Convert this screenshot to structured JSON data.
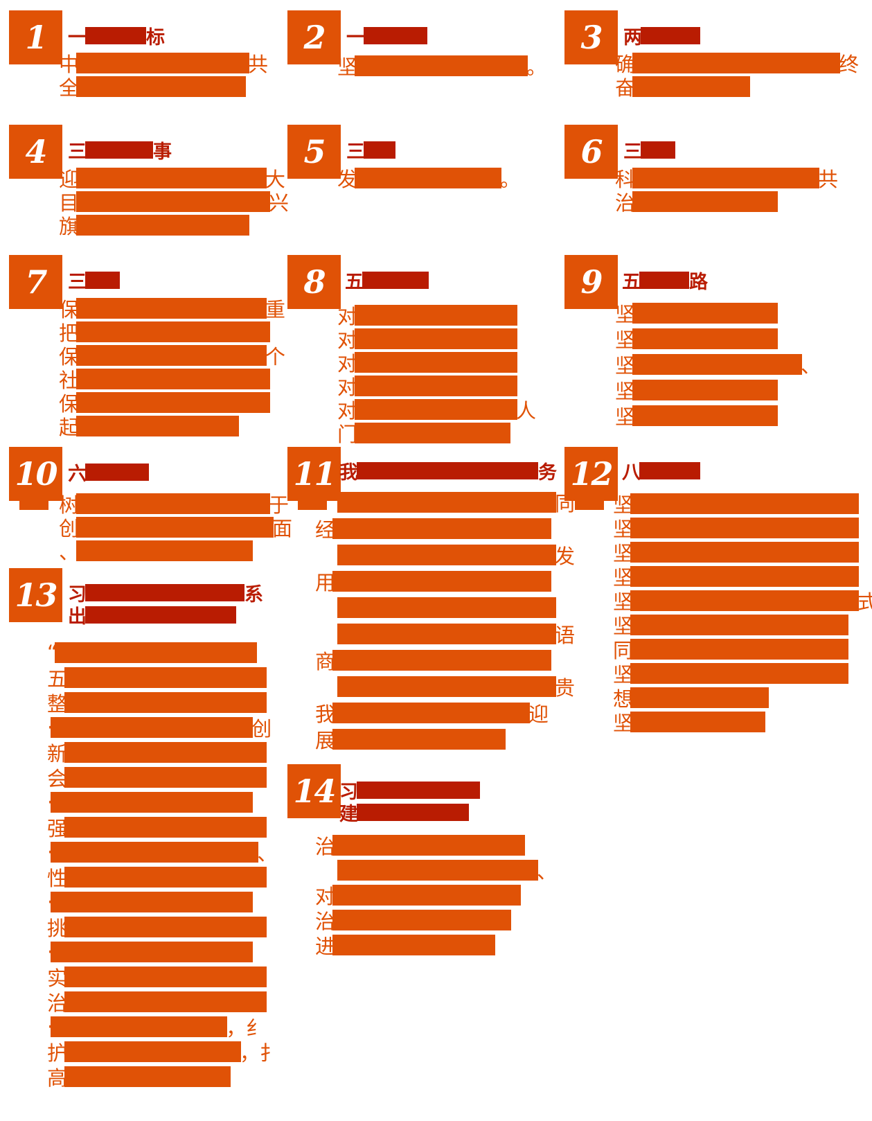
{
  "page": {
    "background": "#ffffff"
  },
  "colors": {
    "accent_orange": "#e05206",
    "heading_dark_red": "#b91c02",
    "badge_number_color": "#ffffff"
  },
  "items": [
    {
      "number": "1",
      "heading": [
        {
          "pre": "一",
          "post": "标"
        }
      ],
      "body": [
        {
          "pre": "中",
          "post": "共"
        },
        {
          "pre": "全",
          "post": ""
        }
      ]
    },
    {
      "number": "2",
      "heading": [
        {
          "pre": "一",
          "post": ""
        }
      ],
      "body": [
        {
          "pre": "坚",
          "post": "。"
        }
      ]
    },
    {
      "number": "3",
      "heading": [
        {
          "pre": "两",
          "post": ""
        }
      ],
      "body": [
        {
          "pre": "确",
          "post": "终"
        },
        {
          "pre": "奋",
          "post": ""
        }
      ]
    },
    {
      "number": "4",
      "heading": [
        {
          "pre": "三",
          "post": "事"
        }
      ],
      "body": [
        {
          "pre": "迎",
          "post": "大"
        },
        {
          "pre": "目",
          "post": "兴"
        },
        {
          "pre": "旗",
          "post": ""
        }
      ]
    },
    {
      "number": "5",
      "heading": [
        {
          "pre": "三",
          "post": ""
        }
      ],
      "body": [
        {
          "pre": "发",
          "post": "。"
        }
      ]
    },
    {
      "number": "6",
      "heading": [
        {
          "pre": "三",
          "post": ""
        }
      ],
      "body": [
        {
          "pre": "科",
          "post": "共"
        },
        {
          "pre": "治",
          "post": ""
        }
      ]
    },
    {
      "number": "7",
      "heading": [
        {
          "pre": "三",
          "post": ""
        }
      ],
      "body": [
        {
          "pre": "保",
          "post": "重"
        },
        {
          "pre": "把",
          "post": ""
        },
        {
          "pre": "保",
          "post": "个"
        },
        {
          "pre": "社",
          "post": ""
        },
        {
          "pre": "保",
          "post": ""
        },
        {
          "pre": "起",
          "post": ""
        }
      ]
    },
    {
      "number": "8",
      "heading": [
        {
          "pre": "五",
          "post": ""
        }
      ],
      "body": [
        {
          "pre": "对",
          "post": ""
        },
        {
          "pre": "对",
          "post": ""
        },
        {
          "pre": "对",
          "post": ""
        },
        {
          "pre": "对",
          "post": ""
        },
        {
          "pre": "对",
          "post": "人"
        },
        {
          "pre": "门",
          "post": ""
        }
      ]
    },
    {
      "number": "9",
      "heading": [
        {
          "pre": "五",
          "post": "路"
        }
      ],
      "body": [
        {
          "pre": "坚",
          "post": ""
        },
        {
          "pre": "坚",
          "post": ""
        },
        {
          "pre": "坚",
          "post": "、"
        },
        {
          "pre": "坚",
          "post": ""
        },
        {
          "pre": "坚",
          "post": ""
        }
      ]
    },
    {
      "number": "10",
      "heading": [
        {
          "pre": "六",
          "post": ""
        }
      ],
      "body": [
        {
          "pre": "树",
          "post": "于"
        },
        {
          "pre": "创",
          "post": "面"
        },
        {
          "pre": "、",
          "post": ""
        }
      ]
    },
    {
      "number": "11",
      "heading": [
        {
          "pre": "我",
          "post": "务"
        }
      ],
      "body": [
        {
          "pre": "",
          "post": "同"
        },
        {
          "pre": "经",
          "post": ""
        },
        {
          "pre": "",
          "post": "发"
        },
        {
          "pre": "用",
          "post": ""
        },
        {
          "pre": "",
          "post": ""
        },
        {
          "pre": "",
          "post": "语"
        },
        {
          "pre": "商",
          "post": ""
        },
        {
          "pre": "",
          "post": "贵"
        },
        {
          "pre": "我",
          "post": "迎"
        },
        {
          "pre": "展",
          "post": ""
        }
      ]
    },
    {
      "number": "12",
      "heading": [
        {
          "pre": "八",
          "post": ""
        }
      ],
      "body": [
        {
          "pre": "坚",
          "post": ""
        },
        {
          "pre": "坚",
          "post": ""
        },
        {
          "pre": "坚",
          "post": ""
        },
        {
          "pre": "坚",
          "post": ""
        },
        {
          "pre": "坚",
          "post": "式"
        },
        {
          "pre": "坚",
          "post": ""
        },
        {
          "pre": "同",
          "post": ""
        },
        {
          "pre": "坚",
          "post": ""
        },
        {
          "pre": "想",
          "post": ""
        },
        {
          "pre": "坚",
          "post": ""
        }
      ]
    },
    {
      "number": "13",
      "heading": [
        {
          "pre": "习",
          "post": "系"
        },
        {
          "pre": "出",
          "post": ""
        }
      ],
      "body": [
        {
          "pre": "“",
          "post": ""
        },
        {
          "pre": "五",
          "post": ""
        },
        {
          "pre": "整",
          "post": ""
        },
        {
          "pre": "·",
          "post": "创"
        },
        {
          "pre": "新",
          "post": ""
        },
        {
          "pre": "会",
          "post": ""
        },
        {
          "pre": "·",
          "post": ""
        },
        {
          "pre": "强",
          "post": ""
        },
        {
          "pre": "·",
          "post": "、"
        },
        {
          "pre": "性",
          "post": ""
        },
        {
          "pre": "·",
          "post": ""
        },
        {
          "pre": "挑",
          "post": ""
        },
        {
          "pre": "·",
          "post": ""
        },
        {
          "pre": "实",
          "post": ""
        },
        {
          "pre": "治",
          "post": ""
        },
        {
          "pre": "·",
          "post": "，纟"
        },
        {
          "pre": "护",
          "post": "，扌"
        },
        {
          "pre": "高",
          "post": ""
        }
      ]
    },
    {
      "number": "14",
      "heading": [
        {
          "pre": "习",
          "post": ""
        },
        {
          "pre": "建",
          "post": ""
        }
      ],
      "body": [
        {
          "pre": "治",
          "post": ""
        },
        {
          "pre": "",
          "post": "、"
        },
        {
          "pre": "对",
          "post": ""
        },
        {
          "pre": "治",
          "post": ""
        },
        {
          "pre": "进",
          "post": ""
        }
      ]
    }
  ]
}
